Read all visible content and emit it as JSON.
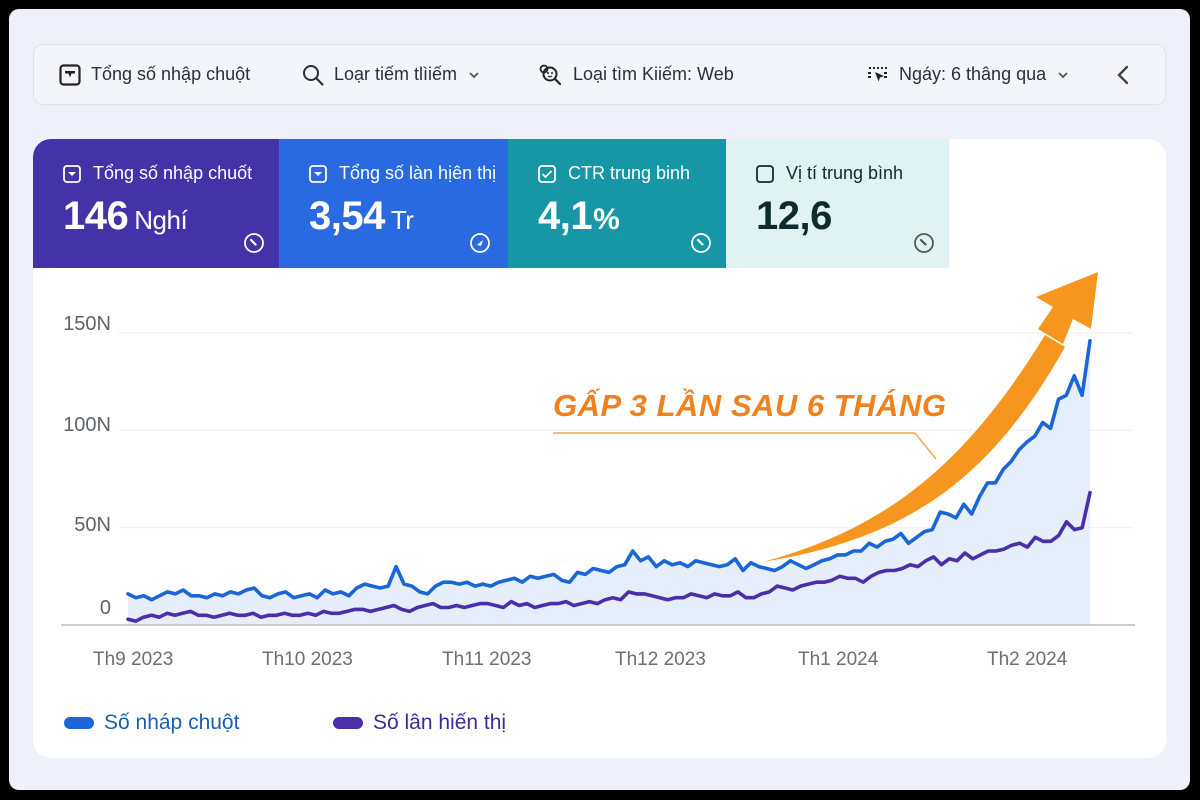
{
  "toolbar": {
    "items": [
      {
        "icon": "total-clicks-icon",
        "label": "Tổng số nhập chuột"
      },
      {
        "icon": "search-icon",
        "label": "Loạr tiếm tlìiếm",
        "has_dropdown": true
      },
      {
        "icon": "search-type-icon",
        "label": "Loại tìm Kiiếm: Web"
      },
      {
        "icon": "date-filter-icon",
        "label": "Ngáy: 6 thâng qua",
        "has_dropdown": true
      }
    ],
    "collapse_icon": "chevron-left-icon"
  },
  "stats": [
    {
      "label": "Tổng số nhập chuốt",
      "value": "146",
      "unit": "Nghí",
      "checked": true,
      "bg": "#4433a8"
    },
    {
      "label": "Tổng số làn hịên thị",
      "value": "3,54",
      "unit": "Tr",
      "checked": true,
      "bg": "#2a6ae0"
    },
    {
      "label": "CTR trung binh",
      "value": "4,1",
      "unit": "%",
      "checked": true,
      "bg": "#1797a6"
    },
    {
      "label": "Vị tí trung bình",
      "value": "12,6",
      "unit": "",
      "checked": false,
      "bg": "#e0f2f2"
    }
  ],
  "annotation": {
    "text": "GẤP 3 LẦN SAU 6 THÁNG",
    "color": "#f0821e",
    "arrow_color": "#f7961e"
  },
  "legend": [
    {
      "label": "Số nháp chuột",
      "color": "#1a66d6",
      "text_color": "#1a5fb4"
    },
    {
      "label": "Số lân hiến thị",
      "color": "#4a2fa8",
      "text_color": "#3d2a9a"
    }
  ],
  "chart_data": {
    "type": "line",
    "title": "",
    "xlabel": "",
    "ylabel": "",
    "ylim": [
      0,
      150
    ],
    "yticks": [
      "0",
      "50N",
      "100N",
      "150N"
    ],
    "ytick_values": [
      0,
      50,
      100,
      150
    ],
    "x_ticks": [
      "Th9 2023",
      "Th10 2023",
      "Th11 2023",
      "Th12 2023",
      "Th1 2024",
      "Th2 2024"
    ],
    "x_tick_positions": [
      8,
      30,
      52,
      73,
      95,
      118
    ],
    "grid": true,
    "legend_position": "bottom-left",
    "area_fill": "#e3ebfa",
    "series": [
      {
        "name": "Số nháp chuột",
        "color": "#1a66d6",
        "values": [
          16,
          14,
          15,
          13,
          15,
          17,
          16,
          18,
          15,
          15,
          14,
          16,
          15,
          17,
          16,
          18,
          19,
          15,
          14,
          16,
          17,
          14,
          15,
          16,
          14,
          18,
          16,
          17,
          15,
          19,
          21,
          20,
          19,
          20,
          30,
          21,
          20,
          17,
          16,
          20,
          22,
          22,
          21,
          22,
          20,
          21,
          20,
          22,
          23,
          24,
          22,
          25,
          24,
          25,
          26,
          23,
          22,
          27,
          26,
          29,
          28,
          27,
          30,
          31,
          38,
          33,
          35,
          30,
          33,
          31,
          32,
          30,
          33,
          32,
          31,
          30,
          31,
          34,
          28,
          32,
          30,
          29,
          28,
          30,
          33,
          31,
          29,
          31,
          33,
          34,
          36,
          36,
          38,
          38,
          42,
          40,
          43,
          44,
          47,
          42,
          45,
          48,
          49,
          58,
          57,
          55,
          62,
          57,
          66,
          73,
          73,
          80,
          84,
          90,
          94,
          97,
          104,
          101,
          116,
          118,
          128,
          118,
          146
        ]
      },
      {
        "name": "Số lân hiến thị",
        "color": "#4a2fa8",
        "values": [
          3,
          2,
          4,
          5,
          4,
          6,
          5,
          6,
          7,
          5,
          5,
          4,
          5,
          6,
          5,
          5,
          6,
          4,
          5,
          5,
          6,
          5,
          5,
          6,
          5,
          7,
          6,
          6,
          7,
          8,
          8,
          7,
          8,
          9,
          10,
          8,
          7,
          9,
          10,
          11,
          9,
          9,
          10,
          9,
          10,
          11,
          11,
          10,
          9,
          12,
          10,
          11,
          9,
          10,
          11,
          11,
          12,
          10,
          11,
          12,
          11,
          13,
          14,
          13,
          17,
          16,
          16,
          15,
          14,
          13,
          14,
          14,
          16,
          15,
          14,
          16,
          15,
          15,
          17,
          14,
          14,
          16,
          17,
          20,
          19,
          18,
          20,
          21,
          22,
          22,
          23,
          25,
          24,
          24,
          22,
          25,
          27,
          28,
          28,
          29,
          31,
          30,
          33,
          35,
          31,
          34,
          33,
          37,
          34,
          36,
          38,
          38,
          39,
          41,
          42,
          40,
          45,
          43,
          43,
          46,
          53,
          49,
          50,
          68
        ]
      }
    ]
  }
}
